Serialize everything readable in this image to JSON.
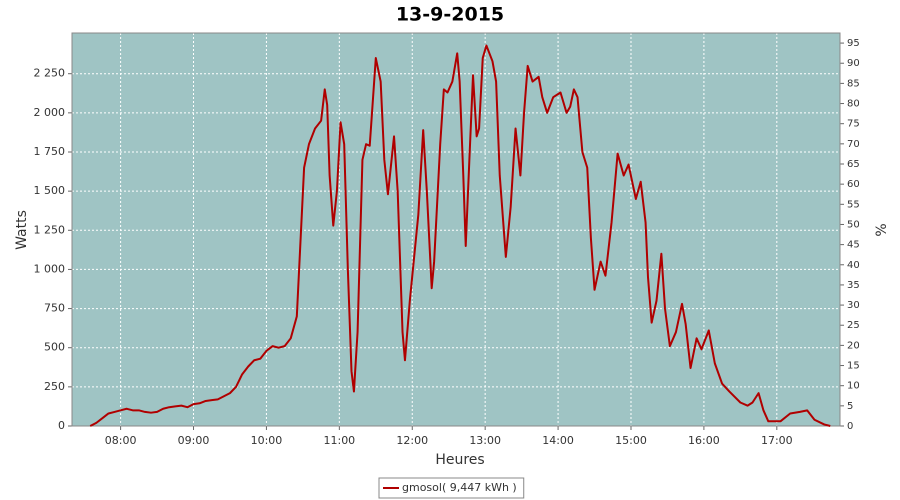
{
  "chart_data": {
    "type": "line",
    "title": "13-9-2015",
    "x_label": "Heures",
    "y_label": "Watts",
    "y2_label": "%",
    "x": [
      "07:35",
      "07:40",
      "07:45",
      "07:50",
      "07:55",
      "08:00",
      "08:05",
      "08:10",
      "08:15",
      "08:20",
      "08:25",
      "08:30",
      "08:35",
      "08:40",
      "08:45",
      "08:50",
      "08:55",
      "09:00",
      "09:05",
      "09:10",
      "09:15",
      "09:20",
      "09:25",
      "09:30",
      "09:35",
      "09:40",
      "09:45",
      "09:50",
      "09:55",
      "10:00",
      "10:05",
      "10:10",
      "10:15",
      "10:20",
      "10:25",
      "10:31",
      "10:35",
      "10:40",
      "10:45",
      "10:48",
      "10:50",
      "10:52",
      "10:55",
      "10:58",
      "11:01",
      "11:04",
      "11:07",
      "11:10",
      "11:12",
      "11:15",
      "11:19",
      "11:22",
      "11:25",
      "11:30",
      "11:34",
      "11:37",
      "11:40",
      "11:45",
      "11:48",
      "11:52",
      "11:54",
      "11:58",
      "12:05",
      "12:09",
      "12:12",
      "12:16",
      "12:18",
      "12:23",
      "12:26",
      "12:29",
      "12:33",
      "12:37",
      "12:39",
      "12:42",
      "12:44",
      "12:47",
      "12:50",
      "12:53",
      "12:55",
      "12:58",
      "13:01",
      "13:06",
      "13:09",
      "13:12",
      "13:17",
      "13:21",
      "13:25",
      "13:29",
      "13:32",
      "13:35",
      "13:39",
      "13:44",
      "13:47",
      "13:51",
      "13:56",
      "14:02",
      "14:07",
      "14:10",
      "14:13",
      "14:16",
      "14:20",
      "14:24",
      "14:27",
      "14:30",
      "14:35",
      "14:39",
      "14:44",
      "14:49",
      "14:54",
      "14:58",
      "15:04",
      "15:08",
      "15:12",
      "15:14",
      "15:17",
      "15:21",
      "15:25",
      "15:28",
      "15:32",
      "15:37",
      "15:42",
      "15:45",
      "15:49",
      "15:54",
      "15:58",
      "16:04",
      "16:09",
      "16:15",
      "16:21",
      "16:30",
      "16:36",
      "16:40",
      "16:45",
      "16:49",
      "16:53",
      "17:03",
      "17:11",
      "17:19",
      "17:25",
      "17:31",
      "17:39",
      "17:44"
    ],
    "series": [
      {
        "name": "gmosol( 9,447 kWh )",
        "color": "#b00000",
        "values": [
          0,
          20,
          50,
          80,
          90,
          100,
          110,
          100,
          100,
          90,
          85,
          90,
          110,
          120,
          125,
          130,
          120,
          140,
          145,
          160,
          165,
          170,
          190,
          210,
          250,
          330,
          380,
          420,
          430,
          480,
          510,
          500,
          510,
          560,
          700,
          1650,
          1800,
          1900,
          1950,
          2150,
          2050,
          1600,
          1280,
          1500,
          1940,
          1800,
          1000,
          350,
          220,
          600,
          1700,
          1800,
          1790,
          2350,
          2200,
          1700,
          1480,
          1850,
          1500,
          600,
          420,
          800,
          1350,
          1890,
          1500,
          880,
          1050,
          1800,
          2150,
          2130,
          2200,
          2380,
          2200,
          1600,
          1150,
          1700,
          2240,
          1850,
          1900,
          2350,
          2430,
          2330,
          2200,
          1600,
          1080,
          1400,
          1900,
          1600,
          2000,
          2300,
          2200,
          2230,
          2100,
          2000,
          2100,
          2130,
          2000,
          2040,
          2150,
          2100,
          1750,
          1650,
          1200,
          870,
          1050,
          960,
          1300,
          1740,
          1600,
          1670,
          1450,
          1560,
          1300,
          950,
          660,
          800,
          1100,
          750,
          510,
          600,
          780,
          650,
          370,
          560,
          490,
          610,
          400,
          270,
          220,
          150,
          130,
          150,
          210,
          100,
          30,
          30,
          80,
          90,
          100,
          40,
          10,
          0
        ]
      }
    ],
    "xlim": [
      "07:20",
      "17:52"
    ],
    "xticks": [
      "08:00",
      "09:00",
      "10:00",
      "11:00",
      "12:00",
      "13:00",
      "14:00",
      "15:00",
      "16:00",
      "17:00"
    ],
    "ylim": [
      0,
      2510
    ],
    "yticks": [
      0,
      250,
      500,
      750,
      {
        "value": 1000,
        "label": "1 000"
      },
      {
        "value": 1250,
        "label": "1 250"
      },
      {
        "value": 1500,
        "label": "1 500"
      },
      {
        "value": 1750,
        "label": "1 750"
      },
      {
        "value": 2000,
        "label": "2 000"
      },
      {
        "value": 2250,
        "label": "2 250"
      }
    ],
    "y2lim": [
      0,
      97.5
    ],
    "y2ticks": [
      0,
      5,
      10,
      15,
      20,
      25,
      30,
      35,
      40,
      45,
      50,
      55,
      60,
      65,
      70,
      75,
      80,
      85,
      90,
      95
    ],
    "grid": true,
    "plot_background": "#9fc4c4",
    "legend": "bottom"
  }
}
